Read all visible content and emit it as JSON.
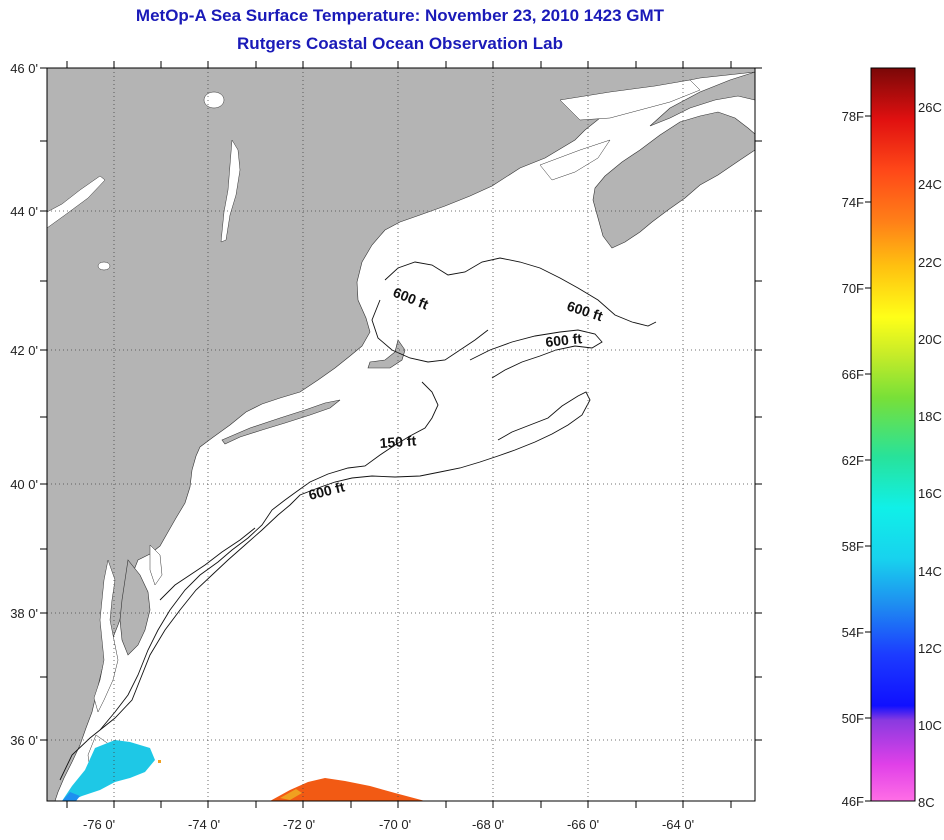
{
  "title": {
    "line1": "MetOp-A Sea Surface Temperature:  November 23, 2010 1423 GMT",
    "line2": "Rutgers Coastal Ocean Observation Lab"
  },
  "map": {
    "latitude_labels": [
      "46 0'",
      "44 0'",
      "42 0'",
      "40 0'",
      "38 0'",
      "36 0'"
    ],
    "longitude_labels": [
      "-76 0'",
      "-74 0'",
      "-72 0'",
      "-70 0'",
      "-68 0'",
      "-66 0'",
      "-64 0'"
    ],
    "contour_labels": [
      "600 ft",
      "600 ft",
      "600 ft",
      "150 ft",
      "600 ft"
    ]
  },
  "colorbar": {
    "fahrenheit_labels": [
      "78F",
      "74F",
      "70F",
      "66F",
      "62F",
      "58F",
      "54F",
      "50F",
      "46F"
    ],
    "celsius_labels": [
      "26C",
      "24C",
      "22C",
      "20C",
      "18C",
      "16C",
      "14C",
      "12C",
      "10C",
      "8C"
    ]
  },
  "colors": {
    "title": "#1a1ab8",
    "land": "#b4b4b4",
    "ocean": "#ffffff",
    "sst_warm_patch": "#f25a14",
    "sst_cool_patch": "#1ec8e6"
  }
}
